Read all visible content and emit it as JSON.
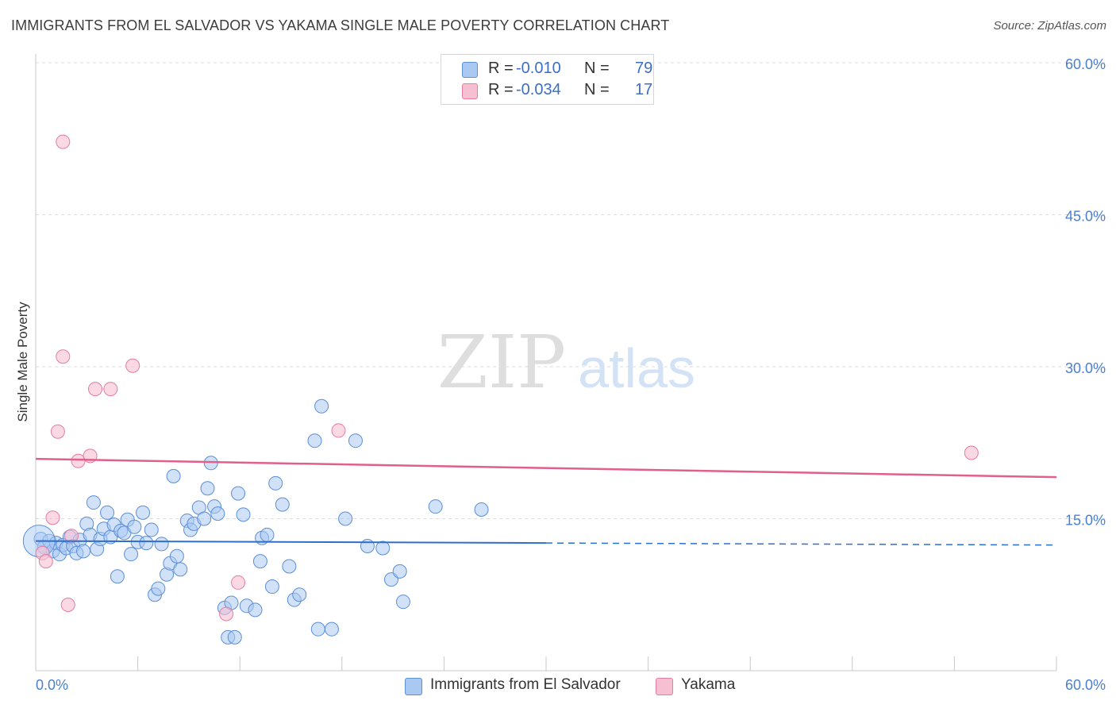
{
  "header": {
    "title": "IMMIGRANTS FROM EL SALVADOR VS YAKAMA SINGLE MALE POVERTY CORRELATION CHART",
    "source": "Source: ZipAtlas.com"
  },
  "watermark": {
    "zip": "ZIP",
    "atlas": "atlas"
  },
  "stats": {
    "rows": [
      {
        "r_label": "R =",
        "r_value": "-0.010",
        "n_label": "N =",
        "n_value": "79"
      },
      {
        "r_label": "R =",
        "r_value": "-0.034",
        "n_label": "N =",
        "n_value": "17"
      }
    ]
  },
  "legend": {
    "items": [
      {
        "label": "Immigrants from El Salvador"
      },
      {
        "label": "Yakama"
      }
    ]
  },
  "colors": {
    "blue_fill": "#a9c9f3",
    "blue_stroke": "#5b8fd6",
    "blue_line": "#2f6fcc",
    "pink_fill": "#f7bfd2",
    "pink_stroke": "#e37ea0",
    "pink_line": "#e0608a",
    "grid": "#dcdcdc",
    "tick_text": "#4a7fd0"
  },
  "chart_data": {
    "type": "scatter",
    "title": "IMMIGRANTS FROM EL SALVADOR VS YAKAMA SINGLE MALE POVERTY CORRELATION CHART",
    "xlabel": "",
    "ylabel": "Single Male Poverty",
    "xlim": [
      0,
      60
    ],
    "ylim": [
      0,
      60
    ],
    "x_tick_labels": [
      "0.0%",
      "60.0%"
    ],
    "y_ticks": [
      15,
      30,
      45,
      60
    ],
    "y_tick_labels": [
      "15.0%",
      "30.0%",
      "45.0%",
      "60.0%"
    ],
    "series": [
      {
        "name": "Immigrants from El Salvador",
        "color": "#a9c9f3",
        "trend": {
          "x0": 0,
          "y0": 12.8,
          "x1": 30,
          "y1": 12.6,
          "dashed_to": 60,
          "dashed_y": 12.4
        },
        "points": [
          [
            0.3,
            13.0
          ],
          [
            0.5,
            12.2
          ],
          [
            0.8,
            12.8
          ],
          [
            1.0,
            11.8
          ],
          [
            1.2,
            12.6
          ],
          [
            1.4,
            11.5
          ],
          [
            1.6,
            12.4
          ],
          [
            1.8,
            12.1
          ],
          [
            2.0,
            13.2
          ],
          [
            2.2,
            12.3
          ],
          [
            2.4,
            11.6
          ],
          [
            2.6,
            12.9
          ],
          [
            2.8,
            11.8
          ],
          [
            3.0,
            14.5
          ],
          [
            3.2,
            13.4
          ],
          [
            3.4,
            16.6
          ],
          [
            3.6,
            12.0
          ],
          [
            3.8,
            13.0
          ],
          [
            4.0,
            14.0
          ],
          [
            4.2,
            15.6
          ],
          [
            4.4,
            13.2
          ],
          [
            4.6,
            14.4
          ],
          [
            4.8,
            9.3
          ],
          [
            5.0,
            13.8
          ],
          [
            5.2,
            13.6
          ],
          [
            5.4,
            14.9
          ],
          [
            5.6,
            11.5
          ],
          [
            5.8,
            14.2
          ],
          [
            6.0,
            12.7
          ],
          [
            6.3,
            15.6
          ],
          [
            6.5,
            12.6
          ],
          [
            6.8,
            13.9
          ],
          [
            7.0,
            7.5
          ],
          [
            7.2,
            8.1
          ],
          [
            7.4,
            12.5
          ],
          [
            7.7,
            9.5
          ],
          [
            7.9,
            10.6
          ],
          [
            8.1,
            19.2
          ],
          [
            8.3,
            11.3
          ],
          [
            8.5,
            10.0
          ],
          [
            8.9,
            14.8
          ],
          [
            9.1,
            13.9
          ],
          [
            9.3,
            14.5
          ],
          [
            9.6,
            16.1
          ],
          [
            9.9,
            15.0
          ],
          [
            10.1,
            18.0
          ],
          [
            10.3,
            20.5
          ],
          [
            10.5,
            16.2
          ],
          [
            10.7,
            15.5
          ],
          [
            11.1,
            6.2
          ],
          [
            11.3,
            3.3
          ],
          [
            11.5,
            6.7
          ],
          [
            11.7,
            3.3
          ],
          [
            11.9,
            17.5
          ],
          [
            12.2,
            15.4
          ],
          [
            12.4,
            6.4
          ],
          [
            12.9,
            6.0
          ],
          [
            13.2,
            10.8
          ],
          [
            13.3,
            13.1
          ],
          [
            13.6,
            13.4
          ],
          [
            13.9,
            8.3
          ],
          [
            14.1,
            18.5
          ],
          [
            14.5,
            16.4
          ],
          [
            14.9,
            10.3
          ],
          [
            15.2,
            7.0
          ],
          [
            15.5,
            7.5
          ],
          [
            16.4,
            22.7
          ],
          [
            16.6,
            4.1
          ],
          [
            16.8,
            26.1
          ],
          [
            17.4,
            4.1
          ],
          [
            18.2,
            15.0
          ],
          [
            18.8,
            22.7
          ],
          [
            19.5,
            12.3
          ],
          [
            20.4,
            12.1
          ],
          [
            20.9,
            9.0
          ],
          [
            21.4,
            9.8
          ],
          [
            21.6,
            6.8
          ],
          [
            23.5,
            16.2
          ],
          [
            26.2,
            15.9
          ]
        ]
      },
      {
        "name": "Yakama",
        "color": "#f7bfd2",
        "trend": {
          "x0": 0,
          "y0": 20.9,
          "x1": 60,
          "y1": 19.1
        },
        "points": [
          [
            0.4,
            11.6
          ],
          [
            0.6,
            10.8
          ],
          [
            1.0,
            15.1
          ],
          [
            1.3,
            23.6
          ],
          [
            1.6,
            31.0
          ],
          [
            1.6,
            52.2
          ],
          [
            1.9,
            6.5
          ],
          [
            2.1,
            13.3
          ],
          [
            2.5,
            20.7
          ],
          [
            3.2,
            21.2
          ],
          [
            3.5,
            27.8
          ],
          [
            4.4,
            27.8
          ],
          [
            5.7,
            30.1
          ],
          [
            11.2,
            5.6
          ],
          [
            11.9,
            8.7
          ],
          [
            17.8,
            23.7
          ],
          [
            55.0,
            21.5
          ]
        ]
      }
    ]
  }
}
